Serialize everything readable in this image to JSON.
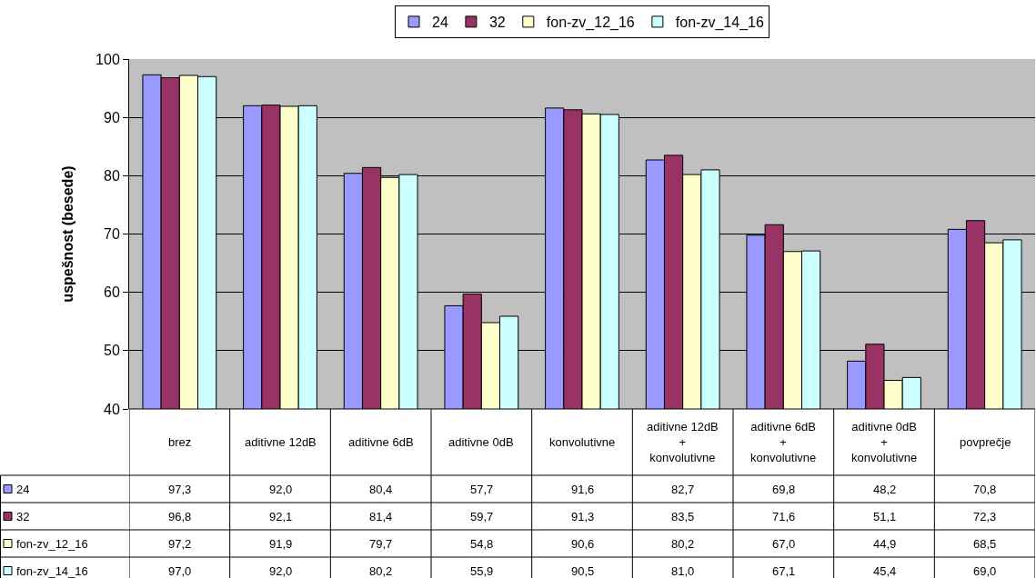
{
  "chart_data": {
    "type": "bar",
    "ylabel": "uspešnost (besede)",
    "categories": [
      "brez",
      "aditivne 12dB",
      "aditivne 6dB",
      "aditivne 0dB",
      "konvolutivne",
      "aditivne 12dB\n+\nkonvolutivne",
      "aditivne 6dB\n+\nkonvolutivne",
      "aditivne 0dB\n+\nkonvolutivne",
      "povprečje"
    ],
    "series": [
      {
        "name": "24",
        "color": "#9999ff",
        "values": [
          97.3,
          92.0,
          80.4,
          57.7,
          91.6,
          82.7,
          69.8,
          48.2,
          70.8
        ],
        "value_labels": [
          "97,3",
          "92,0",
          "80,4",
          "57,7",
          "91,6",
          "82,7",
          "69,8",
          "48,2",
          "70,8"
        ]
      },
      {
        "name": "32",
        "color": "#993366",
        "values": [
          96.8,
          92.1,
          81.4,
          59.7,
          91.3,
          83.5,
          71.6,
          51.1,
          72.3
        ],
        "value_labels": [
          "96,8",
          "92,1",
          "81,4",
          "59,7",
          "91,3",
          "83,5",
          "71,6",
          "51,1",
          "72,3"
        ]
      },
      {
        "name": "fon-zv_12_16",
        "color": "#ffffcc",
        "values": [
          97.2,
          91.9,
          79.7,
          54.8,
          90.6,
          80.2,
          67.0,
          44.9,
          68.5
        ],
        "value_labels": [
          "97,2",
          "91,9",
          "79,7",
          "54,8",
          "90,6",
          "80,2",
          "67,0",
          "44,9",
          "68,5"
        ]
      },
      {
        "name": "fon-zv_14_16",
        "color": "#ccffff",
        "values": [
          97.0,
          92.0,
          80.2,
          55.9,
          90.5,
          81.0,
          67.1,
          45.4,
          69.0
        ],
        "value_labels": [
          "97,0",
          "92,0",
          "80,2",
          "55,9",
          "90,5",
          "81,0",
          "67,1",
          "45,4",
          "69,0"
        ]
      }
    ],
    "ylim": [
      40,
      100
    ],
    "yticks": [
      40,
      50,
      60,
      70,
      80,
      90,
      100
    ],
    "grid": "y",
    "legend": "top"
  }
}
